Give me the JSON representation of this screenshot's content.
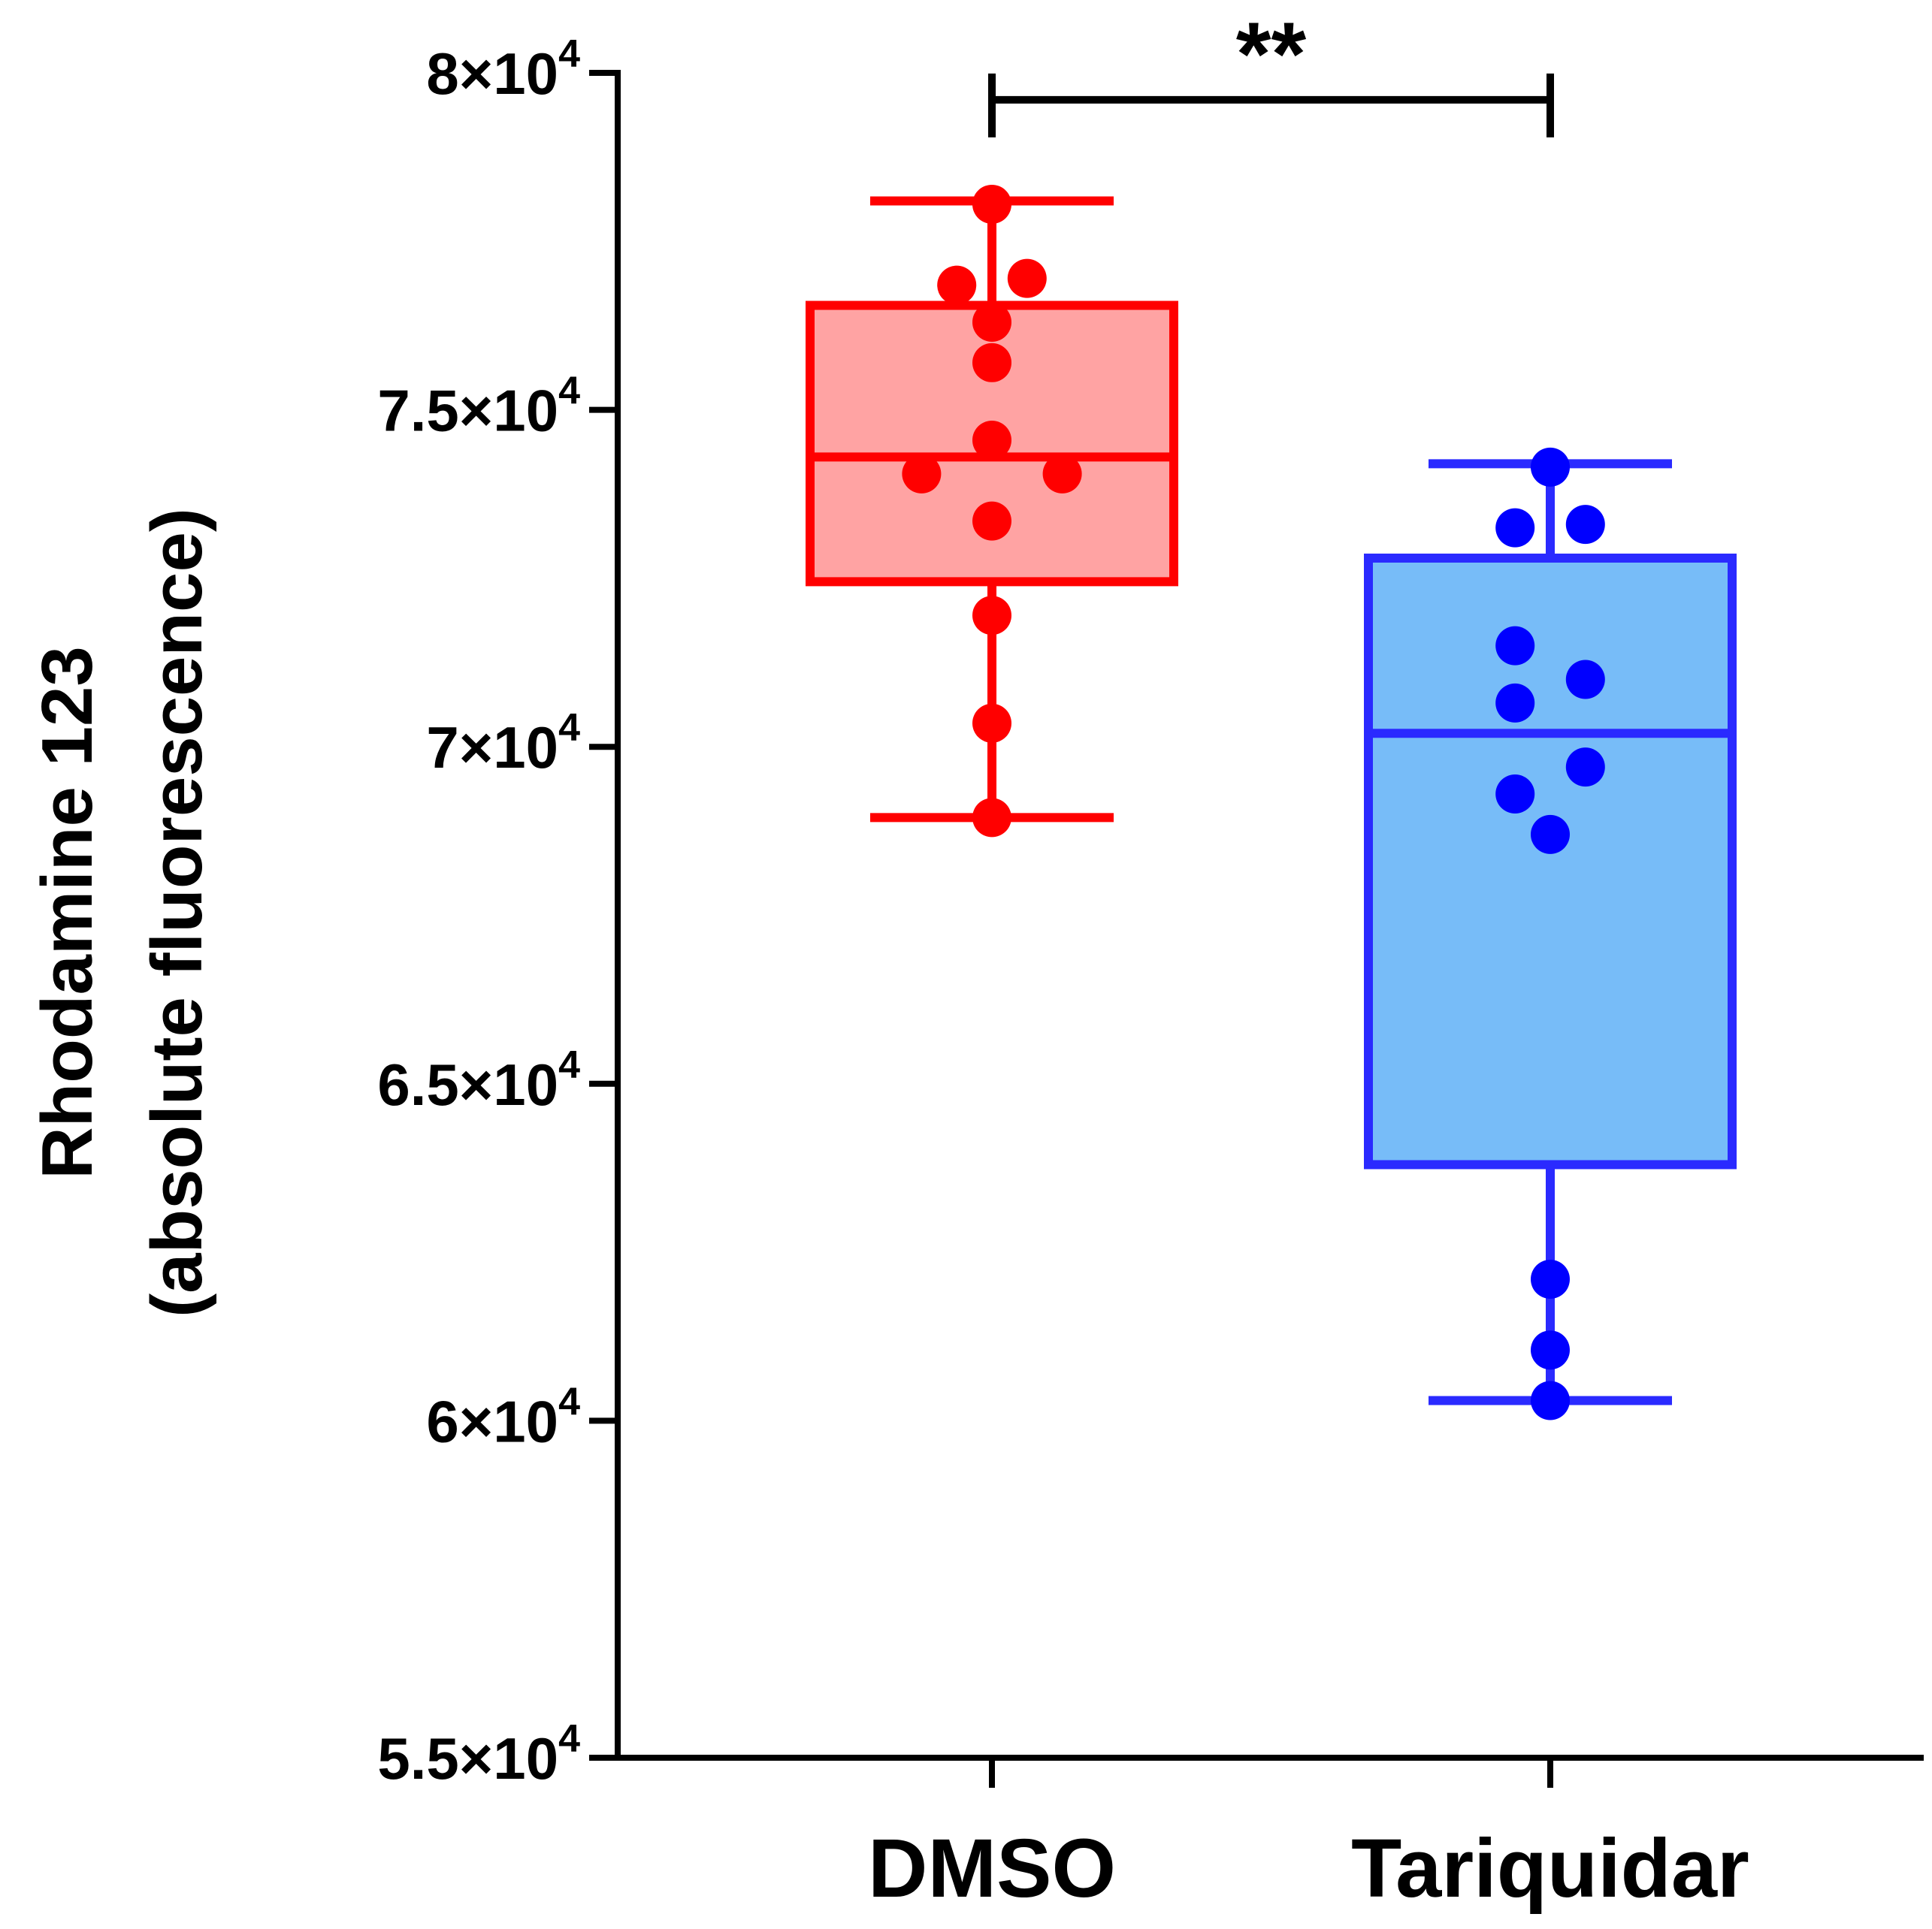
{
  "chart_data": {
    "type": "box",
    "title": "",
    "xlabel": "",
    "ylabel": [
      "Rhodamine 123",
      "(absolute fluorescence)"
    ],
    "ylim": [
      55000,
      80000
    ],
    "yticks": [
      {
        "value": 80000,
        "mantissa": "8",
        "exp": "4"
      },
      {
        "value": 75000,
        "mantissa": "7.5",
        "exp": "4"
      },
      {
        "value": 70000,
        "mantissa": "7",
        "exp": "4"
      },
      {
        "value": 65000,
        "mantissa": "6.5",
        "exp": "4"
      },
      {
        "value": 60000,
        "mantissa": "6",
        "exp": "4"
      },
      {
        "value": 55000,
        "mantissa": "5.5",
        "exp": "4"
      }
    ],
    "groups": [
      {
        "name": "DMSO",
        "edge_color": "#ff0000",
        "fill_color": "#ffa3a3",
        "min": 68950,
        "q1": 72450,
        "median": 74300,
        "q3": 76550,
        "max": 78100,
        "points": [
          {
            "v": 78050,
            "dx": 0
          },
          {
            "v": 76850,
            "dx": -0.09
          },
          {
            "v": 76950,
            "dx": 0.09
          },
          {
            "v": 76300,
            "dx": 0
          },
          {
            "v": 75700,
            "dx": 0
          },
          {
            "v": 74550,
            "dx": 0
          },
          {
            "v": 74050,
            "dx": -0.18
          },
          {
            "v": 74050,
            "dx": 0.18
          },
          {
            "v": 73350,
            "dx": 0
          },
          {
            "v": 71950,
            "dx": 0
          },
          {
            "v": 70350,
            "dx": 0
          },
          {
            "v": 68950,
            "dx": 0
          }
        ]
      },
      {
        "name": "Tariquidar",
        "edge_color": "#2a2aff",
        "fill_color": "#77bcf8",
        "min": 60300,
        "q1": 63800,
        "median": 70200,
        "q3": 72800,
        "max": 74200,
        "points": [
          {
            "v": 74150,
            "dx": 0
          },
          {
            "v": 73250,
            "dx": -0.09
          },
          {
            "v": 73300,
            "dx": 0.09
          },
          {
            "v": 71500,
            "dx": -0.09
          },
          {
            "v": 71000,
            "dx": 0.09
          },
          {
            "v": 70650,
            "dx": -0.09
          },
          {
            "v": 69700,
            "dx": 0.09
          },
          {
            "v": 69300,
            "dx": -0.09
          },
          {
            "v": 68700,
            "dx": 0
          },
          {
            "v": 62100,
            "dx": 0
          },
          {
            "v": 61050,
            "dx": 0
          },
          {
            "v": 60300,
            "dx": 0
          }
        ]
      }
    ],
    "significance": {
      "from": "DMSO",
      "to": "Tariquidar",
      "label": "**",
      "y": 79600
    }
  }
}
